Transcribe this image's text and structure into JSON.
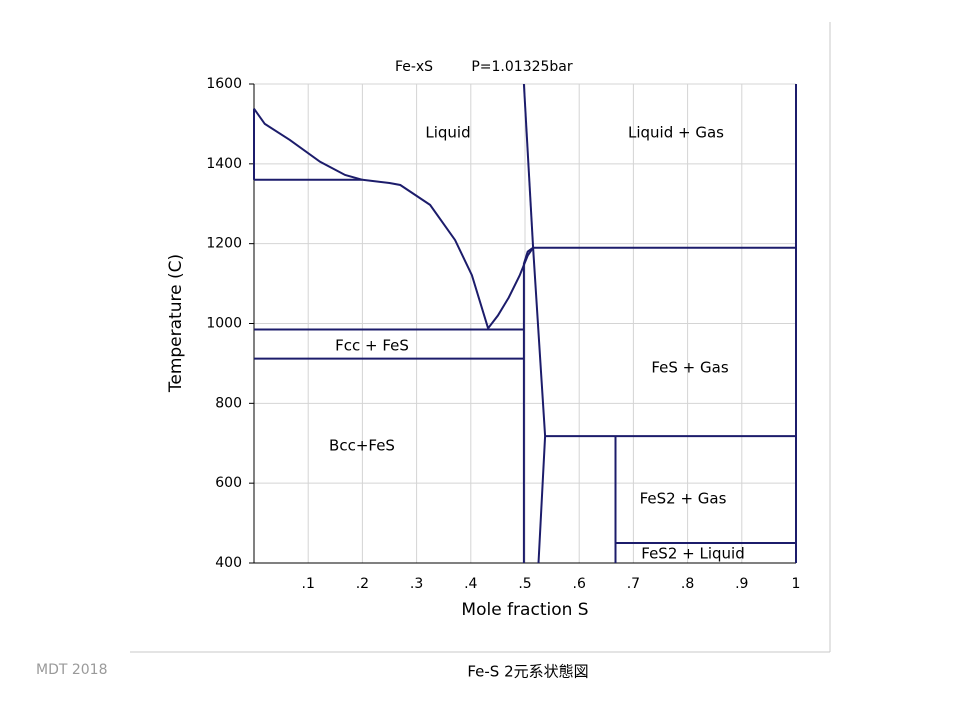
{
  "chart_data": {
    "type": "line",
    "title": "Fe-xS",
    "subtitle": "P=1.01325bar",
    "x_label": "Mole fraction S",
    "y_label": "Temperature (C)",
    "xlim": [
      0,
      1
    ],
    "ylim": [
      400,
      1600
    ],
    "xticks": [
      {
        "value": 0.1,
        "label": ".1"
      },
      {
        "value": 0.2,
        "label": ".2"
      },
      {
        "value": 0.3,
        "label": ".3"
      },
      {
        "value": 0.4,
        "label": ".4"
      },
      {
        "value": 0.5,
        "label": ".5"
      },
      {
        "value": 0.6,
        "label": ".6"
      },
      {
        "value": 0.7,
        "label": ".7"
      },
      {
        "value": 0.8,
        "label": ".8"
      },
      {
        "value": 0.9,
        "label": ".9"
      },
      1
    ],
    "yticks": [
      400,
      600,
      800,
      1000,
      1200,
      1400,
      1600
    ],
    "grid": true,
    "color": "#1c1c6b",
    "series": [
      {
        "x": [
          0,
          0.02,
          0.066,
          0.122,
          0.168,
          0.2
        ],
        "values": [
          1538,
          1500,
          1460,
          1405,
          1372,
          1360
        ]
      },
      {
        "x": [
          0,
          0
        ],
        "values": [
          1538,
          1360
        ]
      },
      {
        "x": [
          0,
          0.2
        ],
        "values": [
          1360,
          1360
        ]
      },
      {
        "x": [
          0.2,
          0.25,
          0.27,
          0.325,
          0.371,
          0.402,
          0.432
        ],
        "values": [
          1360,
          1352,
          1347,
          1297,
          1209,
          1121,
          988
        ]
      },
      {
        "x": [
          0.432,
          0.45,
          0.47,
          0.49,
          0.505,
          0.515
        ],
        "values": [
          988,
          1020,
          1065,
          1120,
          1170,
          1190
        ]
      },
      {
        "x": [
          0,
          0.498
        ],
        "values": [
          985,
          985
        ]
      },
      {
        "x": [
          0,
          0.498
        ],
        "values": [
          912,
          912
        ]
      },
      {
        "x": [
          0.498,
          0.498,
          0.505,
          0.515
        ],
        "values": [
          400,
          1150,
          1180,
          1190
        ]
      },
      {
        "x": [
          0.498,
          0.515
        ],
        "values": [
          1600,
          1190
        ]
      },
      {
        "x": [
          0.515,
          0.537,
          0.525
        ],
        "values": [
          1190,
          718,
          400
        ]
      },
      {
        "x": [
          0.515,
          1
        ],
        "values": [
          1190,
          1190
        ]
      },
      {
        "x": [
          0.537,
          1
        ],
        "values": [
          718,
          718
        ]
      },
      {
        "x": [
          0.667,
          0.667
        ],
        "values": [
          400,
          718
        ]
      },
      {
        "x": [
          0.667,
          1
        ],
        "values": [
          450,
          450
        ]
      },
      {
        "x": [
          1,
          1
        ],
        "values": [
          400,
          1600
        ]
      }
    ],
    "annotations": [
      "Liquid",
      "Liquid + Gas",
      "Fcc + FeS",
      "FeS + Gas",
      "Bcc+FeS",
      "FeS2 + Gas",
      "FeS2 + Liquid"
    ]
  },
  "footer": {
    "left": "MDT  2018",
    "caption": "Fe-S  2元系状態図"
  }
}
